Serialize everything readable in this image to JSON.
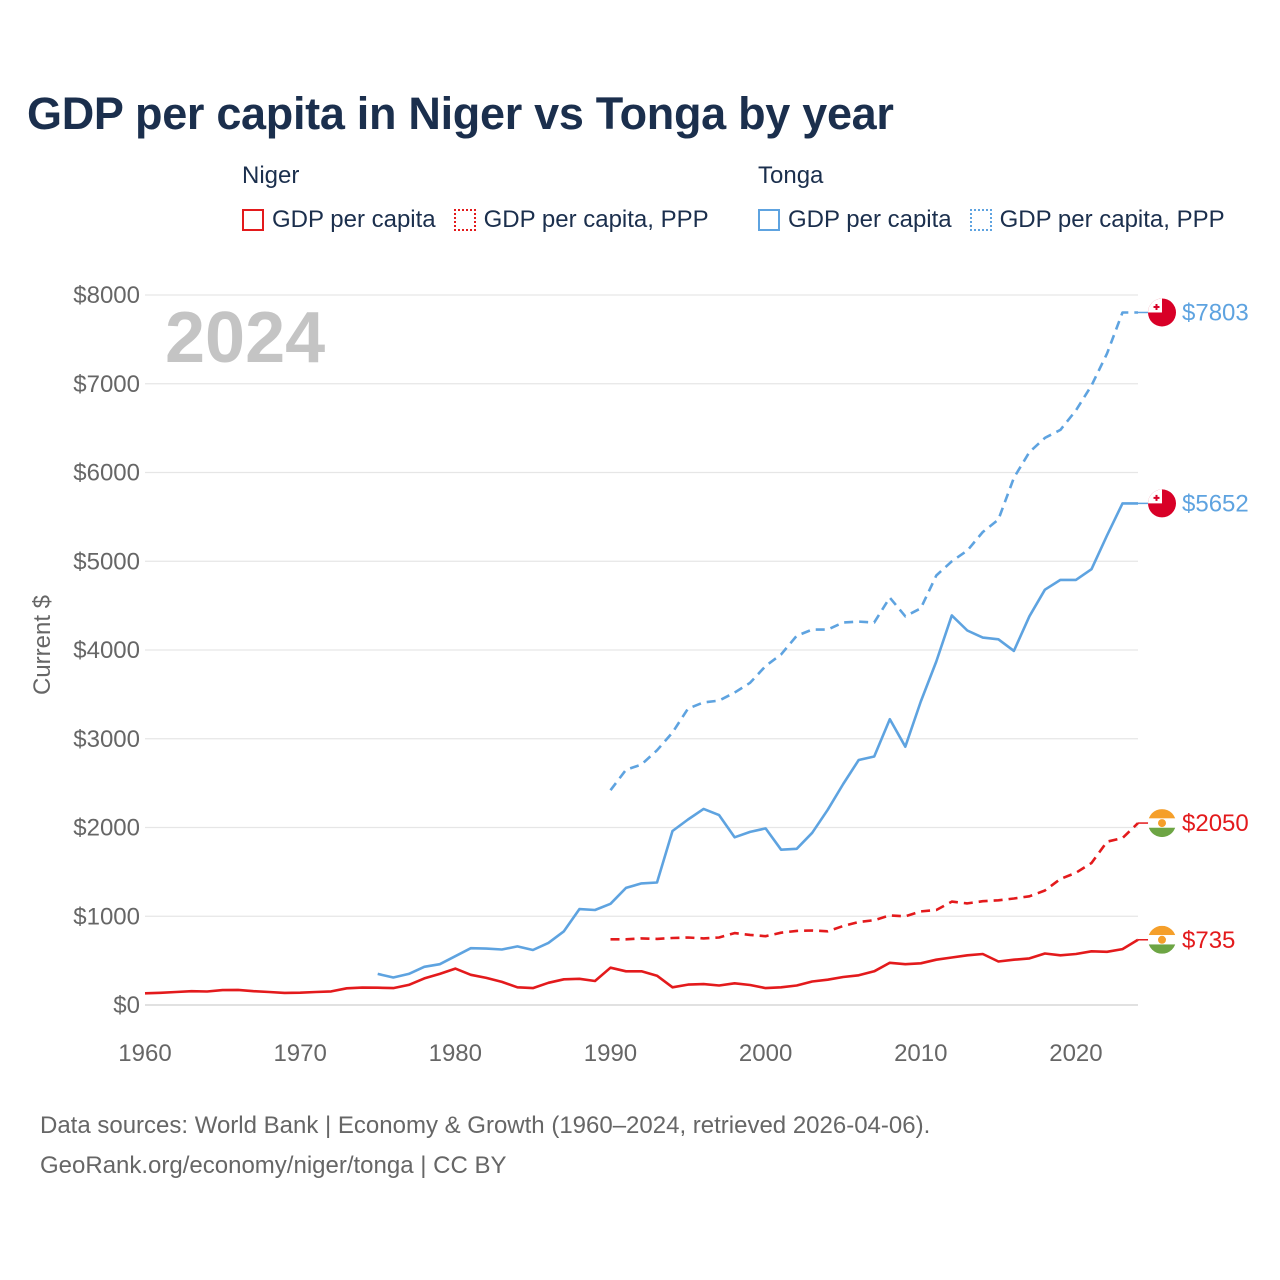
{
  "title": "GDP per capita in Niger vs Tonga by year",
  "legend": {
    "niger": {
      "name": "Niger",
      "items": [
        "GDP per capita",
        "GDP per capita, PPP"
      ]
    },
    "tonga": {
      "name": "Tonga",
      "items": [
        "GDP per capita",
        "GDP per capita, PPP"
      ]
    }
  },
  "year_watermark": "2024",
  "footer": {
    "line1": "Data sources: World Bank | Economy & Growth (1960–2024, retrieved 2026-04-06).",
    "line2": "GeoRank.org/economy/niger/tonga | CC BY"
  },
  "colors": {
    "niger": "#e31a1c",
    "tonga": "#5ea3e0",
    "title": "#1b2f4d",
    "axis_text": "#666666",
    "grid": "#e6e6e6",
    "watermark": "#c4c4c4"
  },
  "chart_data": {
    "type": "line",
    "ylabel": "Current $",
    "xlabel": "",
    "xlim": [
      1960,
      2024
    ],
    "ylim": [
      0,
      8000
    ],
    "x_ticks": [
      1960,
      1970,
      1980,
      1990,
      2000,
      2010,
      2020
    ],
    "y_ticks": [
      0,
      1000,
      2000,
      3000,
      4000,
      5000,
      6000,
      7000,
      8000
    ],
    "y_tick_labels": [
      "$0",
      "$1000",
      "$2000",
      "$3000",
      "$4000",
      "$5000",
      "$6000",
      "$7000",
      "$8000"
    ],
    "series": [
      {
        "key": "niger_gdp",
        "country": "Niger",
        "name": "GDP per capita",
        "style": "solid",
        "color": "#e31a1c",
        "end_label": "$735",
        "end_value": 735,
        "flag": "niger-flag-icon",
        "x": [
          1960,
          1961,
          1962,
          1963,
          1964,
          1965,
          1966,
          1967,
          1968,
          1969,
          1970,
          1971,
          1972,
          1973,
          1974,
          1975,
          1976,
          1977,
          1978,
          1979,
          1980,
          1981,
          1982,
          1983,
          1984,
          1985,
          1986,
          1987,
          1988,
          1989,
          1990,
          1991,
          1992,
          1993,
          1994,
          1995,
          1996,
          1997,
          1998,
          1999,
          2000,
          2001,
          2002,
          2003,
          2004,
          2005,
          2006,
          2007,
          2008,
          2009,
          2010,
          2011,
          2012,
          2013,
          2014,
          2015,
          2016,
          2017,
          2018,
          2019,
          2020,
          2021,
          2022,
          2023,
          2024
        ],
        "values": [
          132,
          137,
          146,
          156,
          152,
          168,
          170,
          155,
          146,
          136,
          139,
          146,
          153,
          188,
          196,
          195,
          190,
          227,
          300,
          350,
          410,
          340,
          305,
          260,
          200,
          190,
          250,
          290,
          295,
          270,
          420,
          380,
          380,
          330,
          200,
          230,
          235,
          220,
          245,
          225,
          190,
          200,
          220,
          265,
          285,
          315,
          335,
          380,
          475,
          460,
          470,
          510,
          535,
          560,
          575,
          490,
          510,
          525,
          580,
          560,
          575,
          605,
          600,
          630,
          735
        ]
      },
      {
        "key": "niger_ppp",
        "country": "Niger",
        "name": "GDP per capita, PPP",
        "style": "dashed",
        "color": "#e31a1c",
        "end_label": "$2050",
        "end_value": 2050,
        "flag": "niger-flag-icon",
        "x": [
          1990,
          1991,
          1992,
          1993,
          1994,
          1995,
          1996,
          1997,
          1998,
          1999,
          2000,
          2001,
          2002,
          2003,
          2004,
          2005,
          2006,
          2007,
          2008,
          2009,
          2010,
          2011,
          2012,
          2013,
          2014,
          2015,
          2016,
          2017,
          2018,
          2019,
          2020,
          2021,
          2022,
          2023,
          2024
        ],
        "values": [
          740,
          740,
          750,
          745,
          755,
          760,
          750,
          760,
          810,
          790,
          775,
          815,
          835,
          840,
          830,
          890,
          935,
          955,
          1010,
          1000,
          1055,
          1070,
          1165,
          1145,
          1170,
          1180,
          1200,
          1225,
          1290,
          1420,
          1490,
          1600,
          1840,
          1880,
          2050
        ]
      },
      {
        "key": "tonga_gdp",
        "country": "Tonga",
        "name": "GDP per capita",
        "style": "solid",
        "color": "#5ea3e0",
        "end_label": "$5652",
        "end_value": 5652,
        "flag": "tonga-flag-icon",
        "x": [
          1975,
          1976,
          1977,
          1978,
          1979,
          1980,
          1981,
          1982,
          1983,
          1984,
          1985,
          1986,
          1987,
          1988,
          1989,
          1990,
          1991,
          1992,
          1993,
          1994,
          1995,
          1996,
          1997,
          1998,
          1999,
          2000,
          2001,
          2002,
          2003,
          2004,
          2005,
          2006,
          2007,
          2008,
          2009,
          2010,
          2011,
          2012,
          2013,
          2014,
          2015,
          2016,
          2017,
          2018,
          2019,
          2020,
          2021,
          2022,
          2023,
          2024
        ],
        "values": [
          350,
          310,
          350,
          430,
          460,
          550,
          640,
          635,
          625,
          660,
          620,
          700,
          830,
          1080,
          1070,
          1140,
          1320,
          1370,
          1380,
          1960,
          2090,
          2210,
          2140,
          1890,
          1950,
          1990,
          1750,
          1760,
          1940,
          2200,
          2490,
          2760,
          2800,
          3220,
          2910,
          3420,
          3870,
          4390,
          4220,
          4140,
          4120,
          3990,
          4380,
          4680,
          4790,
          4790,
          4910,
          5290,
          5652,
          5652
        ]
      },
      {
        "key": "tonga_ppp",
        "country": "Tonga",
        "name": "GDP per capita, PPP",
        "style": "dashed",
        "color": "#5ea3e0",
        "end_label": "$7803",
        "end_value": 7803,
        "flag": "tonga-flag-icon",
        "x": [
          1990,
          1991,
          1992,
          1993,
          1994,
          1995,
          1996,
          1997,
          1998,
          1999,
          2000,
          2001,
          2002,
          2003,
          2004,
          2005,
          2006,
          2007,
          2008,
          2009,
          2010,
          2011,
          2012,
          2013,
          2014,
          2015,
          2016,
          2017,
          2018,
          2019,
          2020,
          2021,
          2022,
          2023,
          2024
        ],
        "values": [
          2420,
          2650,
          2710,
          2870,
          3070,
          3340,
          3410,
          3430,
          3520,
          3630,
          3820,
          3950,
          4160,
          4230,
          4230,
          4310,
          4320,
          4310,
          4590,
          4380,
          4470,
          4840,
          5000,
          5120,
          5330,
          5470,
          5940,
          6230,
          6390,
          6480,
          6700,
          6980,
          7340,
          7803,
          7803
        ]
      }
    ]
  }
}
